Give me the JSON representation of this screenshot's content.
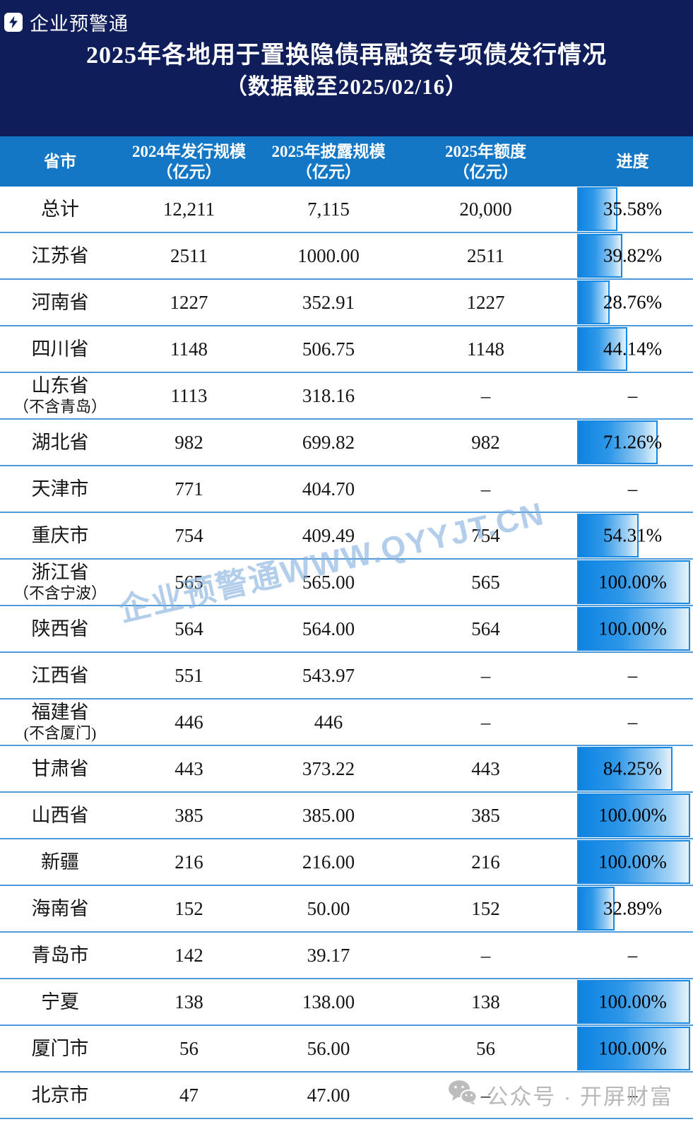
{
  "brand": {
    "name": "企业预警通"
  },
  "title": {
    "line1": "2025年各地用于置换隐债再融资专项债发行情况",
    "line2": "（数据截至2025/02/16）"
  },
  "watermark": {
    "center": "企业预警通WWW.QYYJT.CN",
    "bottom": "公众号 · 开屏财富"
  },
  "colors": {
    "navy_header": "#0f1e5a",
    "table_header_blue": "#1377c5",
    "row_divider": "#4f9ad8",
    "bar_border": "#1789e2",
    "bar_gradient_start": "#0c83e2",
    "bar_gradient_end": "#e4f3fc",
    "watermark_center": "#85b0df",
    "watermark_bottom": "#b9b9b9"
  },
  "table": {
    "columns": [
      {
        "line1": "省市",
        "line2": ""
      },
      {
        "line1": "2024年发行规模",
        "line2": "（亿元）"
      },
      {
        "line1": "2025年披露规模",
        "line2": "（亿元）"
      },
      {
        "line1": "2025年额度",
        "line2": "（亿元）"
      },
      {
        "line1": "进度",
        "line2": ""
      }
    ],
    "rows": [
      {
        "province": "总计",
        "note": "",
        "issued_2024": "12,211",
        "disclosed_2025": "7,115",
        "quota_2025": "20,000",
        "progress": "35.58%",
        "pct": 35.58
      },
      {
        "province": "江苏省",
        "note": "",
        "issued_2024": "2511",
        "disclosed_2025": "1000.00",
        "quota_2025": "2511",
        "progress": "39.82%",
        "pct": 39.82
      },
      {
        "province": "河南省",
        "note": "",
        "issued_2024": "1227",
        "disclosed_2025": "352.91",
        "quota_2025": "1227",
        "progress": "28.76%",
        "pct": 28.76
      },
      {
        "province": "四川省",
        "note": "",
        "issued_2024": "1148",
        "disclosed_2025": "506.75",
        "quota_2025": "1148",
        "progress": "44.14%",
        "pct": 44.14
      },
      {
        "province": "山东省",
        "note": "（不含青岛）",
        "issued_2024": "1113",
        "disclosed_2025": "318.16",
        "quota_2025": "–",
        "progress": "–",
        "pct": null
      },
      {
        "province": "湖北省",
        "note": "",
        "issued_2024": "982",
        "disclosed_2025": "699.82",
        "quota_2025": "982",
        "progress": "71.26%",
        "pct": 71.26
      },
      {
        "province": "天津市",
        "note": "",
        "issued_2024": "771",
        "disclosed_2025": "404.70",
        "quota_2025": "–",
        "progress": "–",
        "pct": null
      },
      {
        "province": "重庆市",
        "note": "",
        "issued_2024": "754",
        "disclosed_2025": "409.49",
        "quota_2025": "754",
        "progress": "54.31%",
        "pct": 54.31
      },
      {
        "province": "浙江省",
        "note": "（不含宁波）",
        "issued_2024": "565",
        "disclosed_2025": "565.00",
        "quota_2025": "565",
        "progress": "100.00%",
        "pct": 100
      },
      {
        "province": "陕西省",
        "note": "",
        "issued_2024": "564",
        "disclosed_2025": "564.00",
        "quota_2025": "564",
        "progress": "100.00%",
        "pct": 100
      },
      {
        "province": "江西省",
        "note": "",
        "issued_2024": "551",
        "disclosed_2025": "543.97",
        "quota_2025": "–",
        "progress": "–",
        "pct": null
      },
      {
        "province": "福建省",
        "note": "(不含厦门)",
        "issued_2024": "446",
        "disclosed_2025": "446",
        "quota_2025": "–",
        "progress": "–",
        "pct": null
      },
      {
        "province": "甘肃省",
        "note": "",
        "issued_2024": "443",
        "disclosed_2025": "373.22",
        "quota_2025": "443",
        "progress": "84.25%",
        "pct": 84.25
      },
      {
        "province": "山西省",
        "note": "",
        "issued_2024": "385",
        "disclosed_2025": "385.00",
        "quota_2025": "385",
        "progress": "100.00%",
        "pct": 100
      },
      {
        "province": "新疆",
        "note": "",
        "issued_2024": "216",
        "disclosed_2025": "216.00",
        "quota_2025": "216",
        "progress": "100.00%",
        "pct": 100
      },
      {
        "province": "海南省",
        "note": "",
        "issued_2024": "152",
        "disclosed_2025": "50.00",
        "quota_2025": "152",
        "progress": "32.89%",
        "pct": 32.89
      },
      {
        "province": "青岛市",
        "note": "",
        "issued_2024": "142",
        "disclosed_2025": "39.17",
        "quota_2025": "–",
        "progress": "–",
        "pct": null
      },
      {
        "province": "宁夏",
        "note": "",
        "issued_2024": "138",
        "disclosed_2025": "138.00",
        "quota_2025": "138",
        "progress": "100.00%",
        "pct": 100
      },
      {
        "province": "厦门市",
        "note": "",
        "issued_2024": "56",
        "disclosed_2025": "56.00",
        "quota_2025": "56",
        "progress": "100.00%",
        "pct": 100
      },
      {
        "province": "北京市",
        "note": "",
        "issued_2024": "47",
        "disclosed_2025": "47.00",
        "quota_2025": "–",
        "progress": "–",
        "pct": null
      }
    ]
  },
  "chart_data": {
    "type": "table",
    "title": "2025年各地用于置换隐债再融资专项债发行情况（数据截至2025/02/16）",
    "columns": [
      "省市",
      "2024年发行规模（亿元）",
      "2025年披露规模（亿元）",
      "2025年额度（亿元）",
      "进度"
    ],
    "rows": [
      [
        "总计",
        "12,211",
        "7,115",
        "20,000",
        "35.58%"
      ],
      [
        "江苏省",
        "2511",
        "1000.00",
        "2511",
        "39.82%"
      ],
      [
        "河南省",
        "1227",
        "352.91",
        "1227",
        "28.76%"
      ],
      [
        "四川省",
        "1148",
        "506.75",
        "1148",
        "44.14%"
      ],
      [
        "山东省（不含青岛）",
        "1113",
        "318.16",
        "–",
        "–"
      ],
      [
        "湖北省",
        "982",
        "699.82",
        "982",
        "71.26%"
      ],
      [
        "天津市",
        "771",
        "404.70",
        "–",
        "–"
      ],
      [
        "重庆市",
        "754",
        "409.49",
        "754",
        "54.31%"
      ],
      [
        "浙江省（不含宁波）",
        "565",
        "565.00",
        "565",
        "100.00%"
      ],
      [
        "陕西省",
        "564",
        "564.00",
        "564",
        "100.00%"
      ],
      [
        "江西省",
        "551",
        "543.97",
        "–",
        "–"
      ],
      [
        "福建省(不含厦门)",
        "446",
        "446",
        "–",
        "–"
      ],
      [
        "甘肃省",
        "443",
        "373.22",
        "443",
        "84.25%"
      ],
      [
        "山西省",
        "385",
        "385.00",
        "385",
        "100.00%"
      ],
      [
        "新疆",
        "216",
        "216.00",
        "216",
        "100.00%"
      ],
      [
        "海南省",
        "152",
        "50.00",
        "152",
        "32.89%"
      ],
      [
        "青岛市",
        "142",
        "39.17",
        "–",
        "–"
      ],
      [
        "宁夏",
        "138",
        "138.00",
        "138",
        "100.00%"
      ],
      [
        "厦门市",
        "56",
        "56.00",
        "56",
        "100.00%"
      ],
      [
        "北京市",
        "47",
        "47.00",
        "–",
        "–"
      ]
    ],
    "progress_bar_percentages": [
      35.58,
      39.82,
      28.76,
      44.14,
      null,
      71.26,
      null,
      54.31,
      100,
      100,
      null,
      null,
      84.25,
      100,
      100,
      32.89,
      null,
      100,
      100,
      null
    ]
  }
}
